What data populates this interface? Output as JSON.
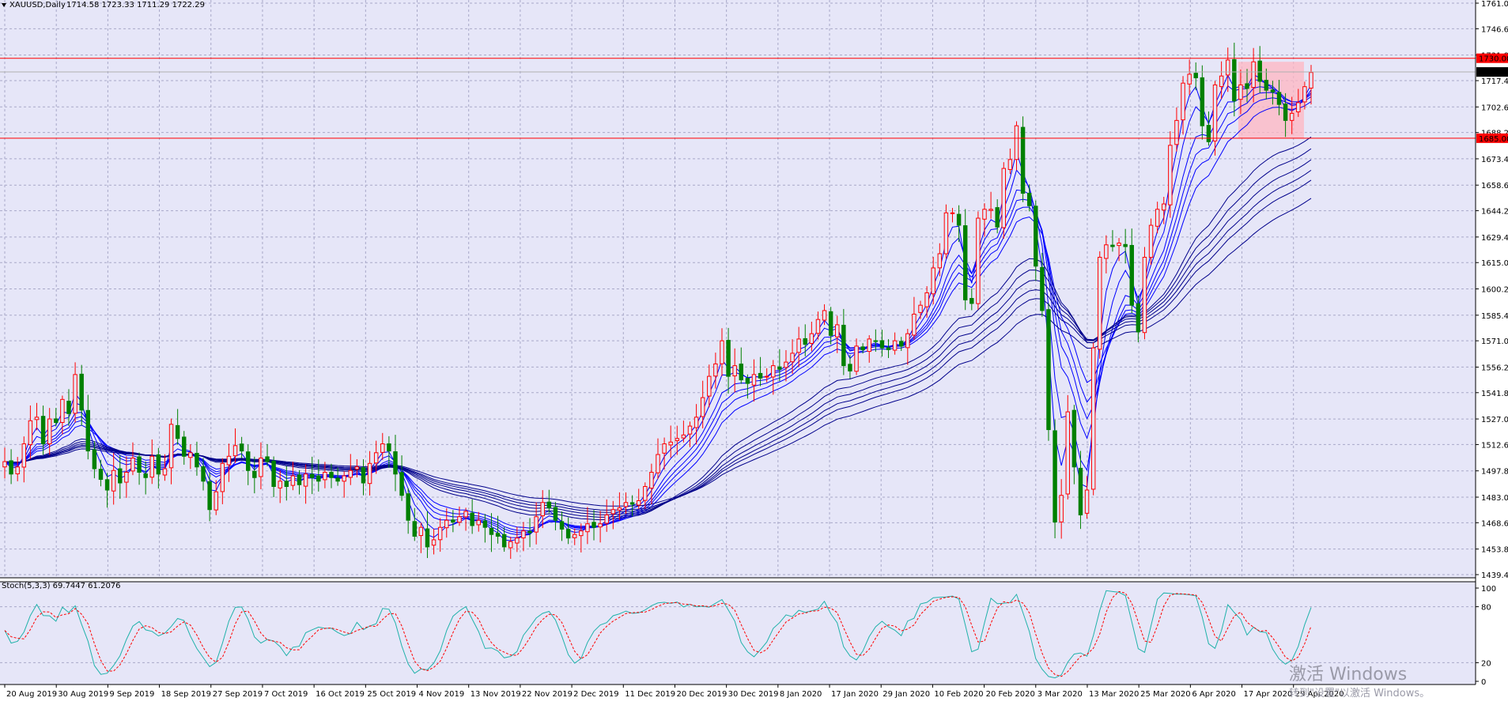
{
  "header": {
    "symbol": "XAUUSD,Daily",
    "ohlc": "1714.58 1723.33 1711.29 1722.29"
  },
  "colors": {
    "background": "#e6e6f8",
    "grid": "#a8a8c8",
    "bull": "#ff0000",
    "bear": "#008000",
    "ema_fast": "#0000ff",
    "ema_slow": "#00008b",
    "level_line": "#ff0000",
    "zone_fill": "#ffb6c1",
    "stoch_main": "#20b2aa",
    "stoch_signal": "#ff0000"
  },
  "price_axis": {
    "ticks": [
      "1761.00",
      "1746.60",
      "1731.80",
      "1717.40",
      "1702.60",
      "1688.20",
      "1673.40",
      "1658.60",
      "1644.20",
      "1629.40",
      "1615.00",
      "1600.20",
      "1585.40",
      "1571.00",
      "1556.20",
      "1541.80",
      "1527.00",
      "1512.60",
      "1497.80",
      "1483.00",
      "1468.60",
      "1453.80",
      "1439.40"
    ],
    "range": [
      1439.4,
      1761.0
    ]
  },
  "levels": [
    {
      "label": "1730.00",
      "value": 1730.0
    },
    {
      "label": "1685.00",
      "value": 1685.0
    }
  ],
  "current_price": {
    "label": "1722.29",
    "value": 1722.29
  },
  "stoch": {
    "label": "Stoch(5,3,3) 69.7447 61.2076",
    "ticks": [
      "100",
      "80",
      "20",
      "0"
    ]
  },
  "date_axis": {
    "labels": [
      "20 Aug 2019",
      "30 Aug 2019",
      "9 Sep 2019",
      "18 Sep 2019",
      "27 Sep 2019",
      "7 Oct 2019",
      "16 Oct 2019",
      "25 Oct 2019",
      "4 Nov 2019",
      "13 Nov 2019",
      "22 Nov 2019",
      "2 Dec 2019",
      "11 Dec 2019",
      "20 Dec 2019",
      "30 Dec 2019",
      "8 Jan 2020",
      "17 Jan 2020",
      "29 Jan 2020",
      "10 Feb 2020",
      "20 Feb 2020",
      "3 Mar 2020",
      "13 Mar 2020",
      "25 Mar 2020",
      "6 Apr 2020",
      "17 Apr 2020",
      "29 Apr 2020"
    ]
  },
  "watermark": {
    "line1": "激活 Windows",
    "line2": "转到\"设置\"以激活 Windows。"
  },
  "chart_data": {
    "type": "candlestick",
    "title": "XAUUSD,Daily",
    "ylim": [
      1439.4,
      1761.0
    ],
    "ema_periods": [
      3,
      5,
      8,
      10,
      12,
      15,
      30,
      35,
      40,
      45,
      50,
      60
    ],
    "zone": {
      "from": "10 Apr 2020",
      "to": "5 May 2020",
      "low": 1685.0,
      "high": 1728.0
    },
    "closes": [
      1503,
      1496,
      1500,
      1513,
      1526,
      1528,
      1513,
      1527,
      1525,
      1538,
      1530,
      1552,
      1532,
      1509,
      1499,
      1493,
      1487,
      1498,
      1491,
      1497,
      1505,
      1497,
      1494,
      1506,
      1496,
      1499,
      1524,
      1516,
      1506,
      1508,
      1500,
      1492,
      1476,
      1486,
      1502,
      1506,
      1512,
      1509,
      1498,
      1494,
      1505,
      1503,
      1489,
      1492,
      1489,
      1495,
      1490,
      1496,
      1494,
      1492,
      1497,
      1494,
      1492,
      1495,
      1498,
      1500,
      1491,
      1502,
      1508,
      1513,
      1509,
      1496,
      1484,
      1470,
      1461,
      1466,
      1455,
      1459,
      1466,
      1470,
      1469,
      1472,
      1475,
      1467,
      1470,
      1466,
      1462,
      1461,
      1455,
      1458,
      1460,
      1464,
      1463,
      1472,
      1480,
      1477,
      1470,
      1465,
      1460,
      1462,
      1464,
      1468,
      1466,
      1468,
      1473,
      1476,
      1477,
      1480,
      1479,
      1481,
      1489,
      1497,
      1507,
      1513,
      1514,
      1516,
      1518,
      1523,
      1528,
      1539,
      1551,
      1558,
      1571,
      1551,
      1557,
      1549,
      1547,
      1552,
      1550,
      1551,
      1557,
      1555,
      1559,
      1564,
      1572,
      1569,
      1575,
      1583,
      1588,
      1574,
      1580,
      1557,
      1554,
      1568,
      1566,
      1572,
      1571,
      1567,
      1566,
      1571,
      1568,
      1575,
      1586,
      1591,
      1598,
      1612,
      1620,
      1643,
      1643,
      1636,
      1594,
      1592,
      1640,
      1645,
      1645,
      1635,
      1668,
      1673,
      1692,
      1654,
      1647,
      1613,
      1588,
      1521,
      1469,
      1484,
      1531,
      1500,
      1473,
      1487,
      1567,
      1618,
      1625,
      1624,
      1626,
      1624,
      1591,
      1576,
      1618,
      1636,
      1645,
      1648,
      1681,
      1695,
      1716,
      1721,
      1719,
      1692,
      1683,
      1715,
      1720,
      1729,
      1706,
      1715,
      1713,
      1728,
      1717,
      1712,
      1711,
      1704,
      1695,
      1699,
      1705,
      1714,
      1722
    ]
  }
}
